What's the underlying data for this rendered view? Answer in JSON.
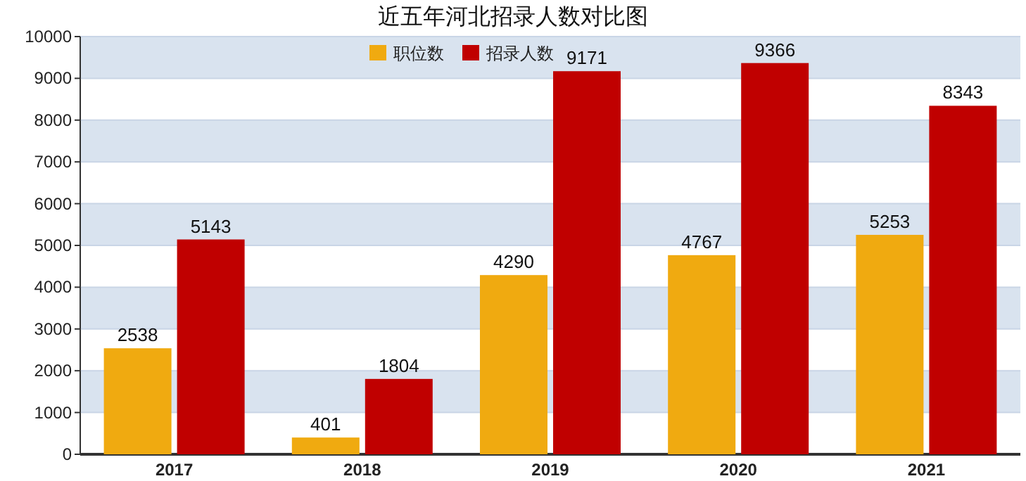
{
  "chart_data": {
    "type": "bar",
    "title": "近五年河北招录人数对比图",
    "categories": [
      "2017",
      "2018",
      "2019",
      "2020",
      "2021"
    ],
    "series": [
      {
        "name": "职位数",
        "color": "#f0aa10",
        "values": [
          2538,
          401,
          4290,
          4767,
          5253
        ]
      },
      {
        "name": "招录人数",
        "color": "#c00000",
        "values": [
          5143,
          1804,
          9171,
          9366,
          8343
        ]
      }
    ],
    "ylim": [
      0,
      10000
    ],
    "yticks": [
      0,
      1000,
      2000,
      3000,
      4000,
      5000,
      6000,
      7000,
      8000,
      9000,
      10000
    ],
    "grid": "y",
    "legend": "top",
    "data_labels": true
  }
}
